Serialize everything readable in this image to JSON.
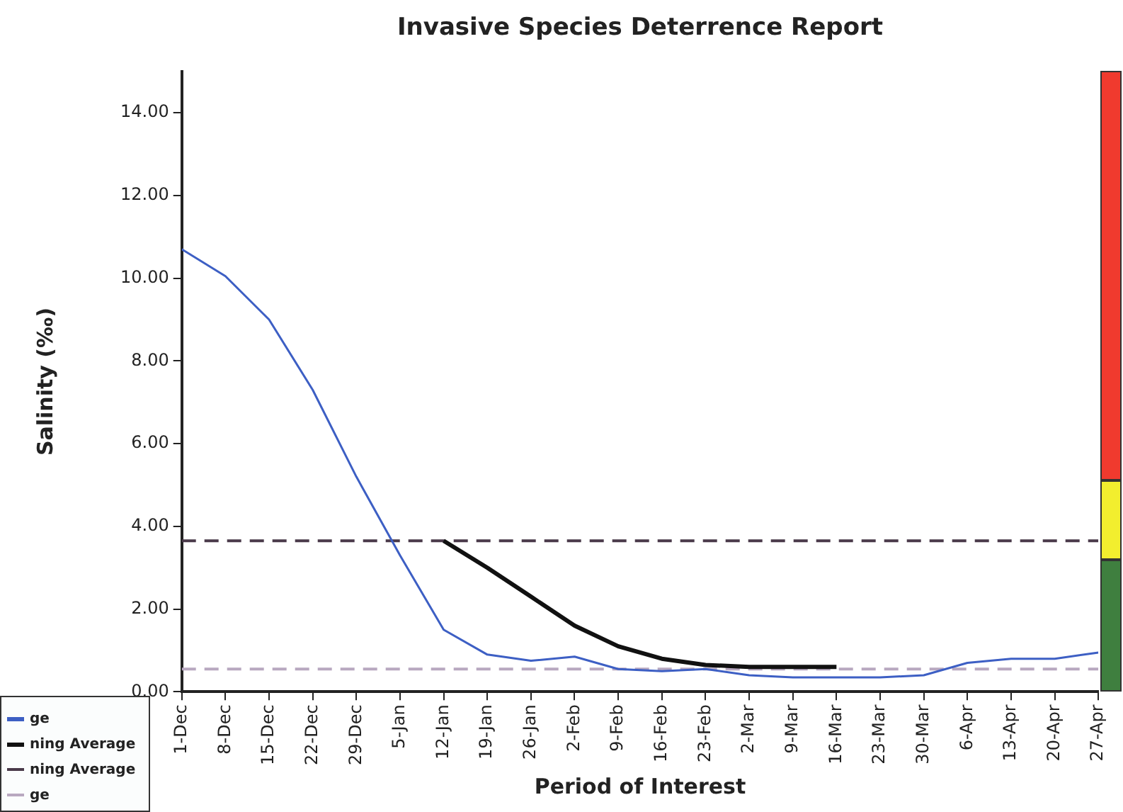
{
  "chart_data": {
    "type": "line",
    "title": "Invasive Species Deterrence Report",
    "xlabel": "Period of Interest",
    "ylabel": "Salinity (‰)",
    "categories": [
      "1-Dec",
      "8-Dec",
      "15-Dec",
      "22-Dec",
      "29-Dec",
      "5-Jan",
      "12-Jan",
      "19-Jan",
      "26-Jan",
      "2-Feb",
      "9-Feb",
      "16-Feb",
      "23-Feb",
      "2-Mar",
      "9-Mar",
      "16-Mar",
      "23-Mar",
      "30-Mar",
      "6-Apr",
      "13-Apr",
      "20-Apr",
      "27-Apr"
    ],
    "ylim": [
      0,
      15
    ],
    "yticks": [
      {
        "value": 0,
        "label": "0.00"
      },
      {
        "value": 2,
        "label": "2.00"
      },
      {
        "value": 4,
        "label": "4.00"
      },
      {
        "value": 6,
        "label": "6.00"
      },
      {
        "value": 8,
        "label": "8.00"
      },
      {
        "value": 10,
        "label": "10.00"
      },
      {
        "value": 12,
        "label": "12.00"
      },
      {
        "value": 14,
        "label": "14.00"
      }
    ],
    "grid": false,
    "legend": "bottom left",
    "marker": "none",
    "series": [
      {
        "name": "ge",
        "color": "#3d5fc4",
        "line_style": "solid",
        "values": [
          10.7,
          10.05,
          9.0,
          7.3,
          5.2,
          3.3,
          1.5,
          0.9,
          0.75,
          0.85,
          0.55,
          0.5,
          0.55,
          0.4,
          0.35,
          0.35,
          0.35,
          0.4,
          0.7,
          0.8,
          0.8,
          0.95
        ]
      },
      {
        "name": "ning Average",
        "color": "#111111",
        "line_style": "solid",
        "values": [
          null,
          null,
          null,
          null,
          null,
          null,
          3.65,
          3.0,
          2.3,
          1.6,
          1.1,
          0.8,
          0.65,
          0.6,
          0.6,
          0.6,
          null,
          null,
          null,
          null,
          null,
          null
        ]
      },
      {
        "name": "ning Average",
        "color": "#4a3a4a",
        "line_style": "dashed",
        "values": [
          3.65,
          3.65,
          3.65,
          3.65,
          3.65,
          3.65,
          3.65,
          3.65,
          3.65,
          3.65,
          3.65,
          3.65,
          3.65,
          3.65,
          3.65,
          3.65,
          3.65,
          3.65,
          3.65,
          3.65,
          3.65,
          3.65
        ]
      },
      {
        "name": "ge",
        "color": "#b8a8c0",
        "line_style": "dashed",
        "values": [
          0.55,
          0.55,
          0.55,
          0.55,
          0.55,
          0.55,
          0.55,
          0.55,
          0.55,
          0.55,
          0.55,
          0.55,
          0.55,
          0.55,
          0.55,
          0.55,
          0.55,
          0.55,
          0.55,
          0.55,
          0.55,
          0.55
        ]
      }
    ]
  }
}
